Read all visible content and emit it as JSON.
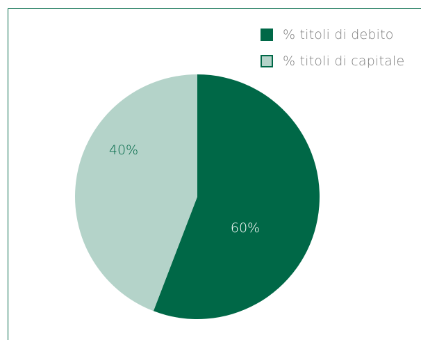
{
  "chart_data": {
    "type": "pie",
    "title": "",
    "slices": [
      {
        "label": "% titoli di debito",
        "value": 60,
        "data_label": "60%",
        "color": "#006847"
      },
      {
        "label": "% titoli di capitale",
        "value": 40,
        "data_label": "40%",
        "color": "#b4d3c9"
      }
    ],
    "legend_position": "top-right",
    "start_angle_deg": 0,
    "direction": "clockwise"
  },
  "colors": {
    "frame": "#006847",
    "legend_text": "#7d7d7d",
    "inner_label_dark_slice": "#ffffff",
    "inner_label_light_slice": "#006847"
  }
}
